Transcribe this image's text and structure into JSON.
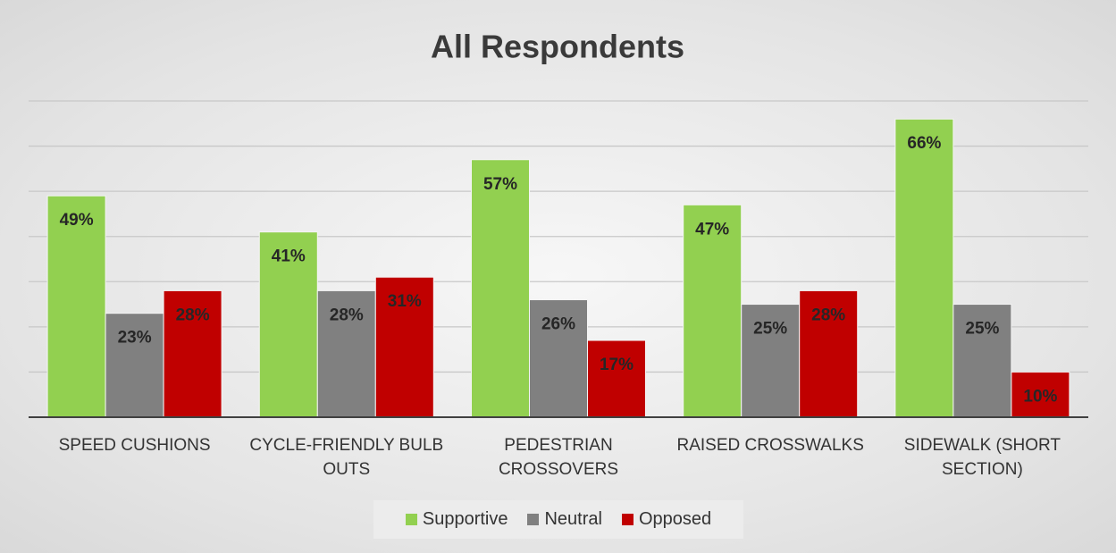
{
  "chart_data": {
    "type": "bar",
    "title": "All Respondents",
    "categories": [
      "SPEED CUSHIONS",
      "CYCLE-FRIENDLY BULB OUTS",
      "PEDESTRIAN CROSSOVERS",
      "RAISED CROSSWALKS",
      "SIDEWALK (SHORT SECTION)"
    ],
    "series": [
      {
        "name": "Supportive",
        "color": "#92d050",
        "values": [
          49,
          41,
          57,
          47,
          66
        ],
        "value_labels": [
          "49%",
          "41%",
          "57%",
          "47%",
          "66%"
        ]
      },
      {
        "name": "Neutral",
        "color": "#808080",
        "values": [
          23,
          28,
          26,
          25,
          25
        ],
        "value_labels": [
          "23%",
          "28%",
          "26%",
          "25%",
          "25%"
        ]
      },
      {
        "name": "Opposed",
        "color": "#c00000",
        "values": [
          28,
          31,
          17,
          28,
          10
        ],
        "value_labels": [
          "28%",
          "31%",
          "17%",
          "28%",
          "10%"
        ]
      }
    ],
    "ylim": [
      0,
      70
    ],
    "yticks": [
      0,
      10,
      20,
      30,
      40,
      50,
      60,
      70
    ],
    "grid": true,
    "legend": "bottom"
  }
}
